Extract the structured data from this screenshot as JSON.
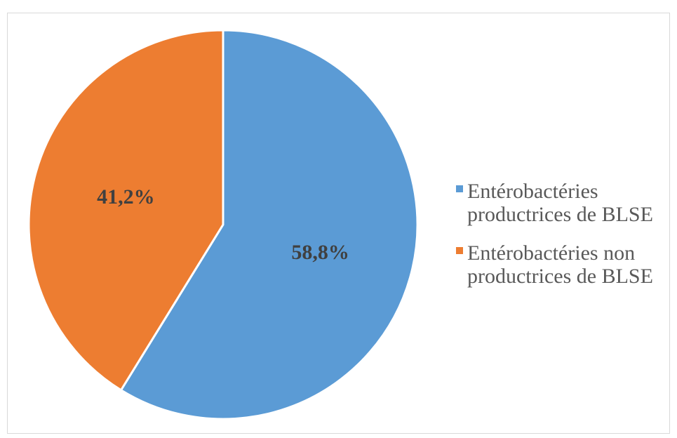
{
  "chart_data": {
    "type": "pie",
    "categories": [
      "Entérobactéries productrices de BLSE",
      "Entérobactéries non productrices de BLSE"
    ],
    "values": [
      58.8,
      41.2
    ],
    "labels": [
      "58,8%",
      "41,2%"
    ],
    "colors": [
      "#5B9BD5",
      "#ED7D31"
    ],
    "legend_position": "right",
    "start_angle_deg": 0,
    "direction": "clockwise"
  },
  "legend": {
    "items": [
      {
        "label": "Entérobactéries productrices de BLSE",
        "color": "#5B9BD5"
      },
      {
        "label": "Entérobactéries non productrices de BLSE",
        "color": "#ED7D31"
      }
    ]
  }
}
